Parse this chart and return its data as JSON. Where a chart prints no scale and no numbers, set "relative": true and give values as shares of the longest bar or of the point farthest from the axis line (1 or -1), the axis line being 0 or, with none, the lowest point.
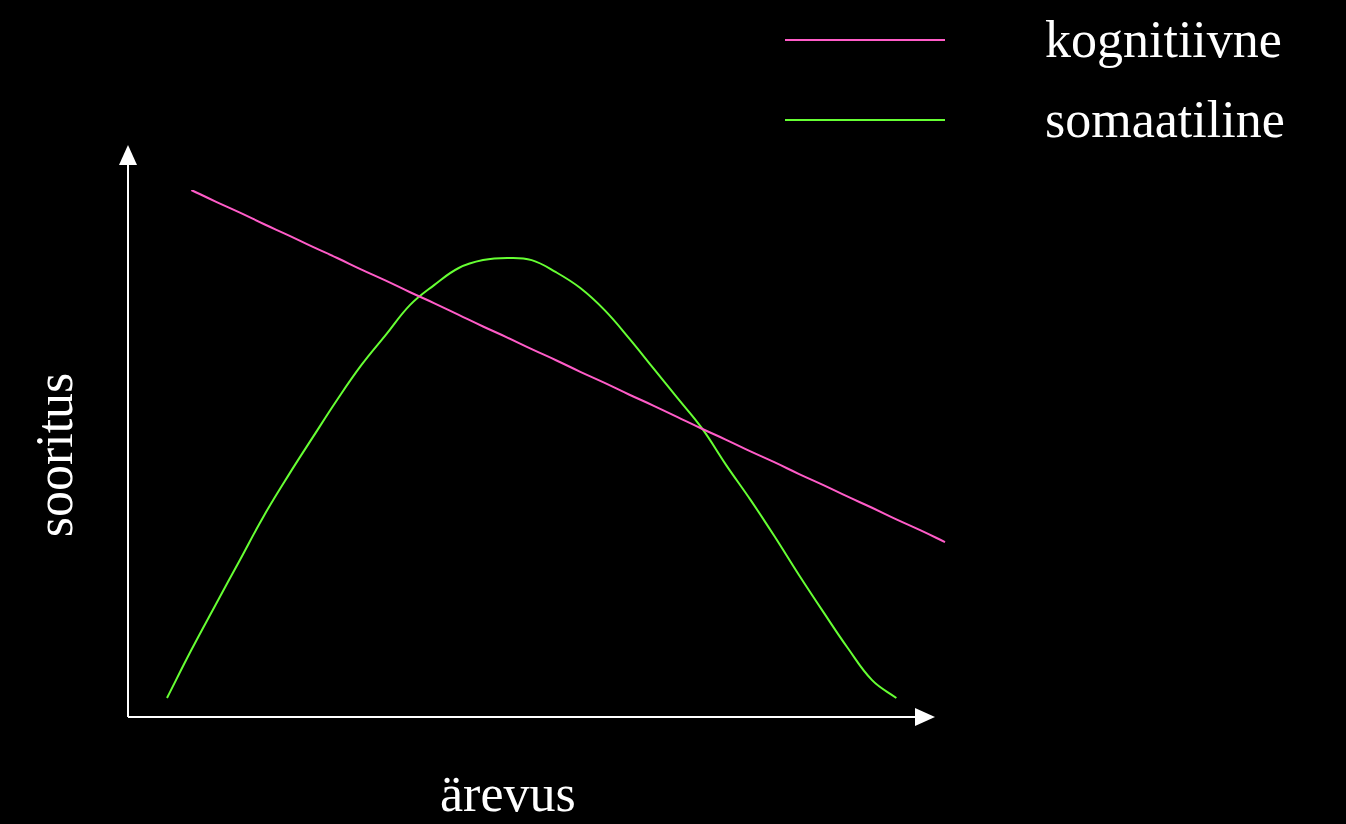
{
  "chart_data": {
    "type": "line",
    "relative": true,
    "xlabel": "ärevus",
    "ylabel": "sooritus",
    "legend": "top right",
    "marker": "none",
    "categories": [
      null,
      null,
      null,
      null,
      null,
      null,
      null,
      null,
      null,
      null,
      null,
      null,
      null,
      null,
      null,
      null,
      null,
      null,
      null,
      null,
      null,
      null,
      null,
      null,
      null,
      null,
      null,
      null,
      null,
      null,
      null,
      null,
      null
    ],
    "series": [
      {
        "name": "kognitiivne",
        "color": "#ff5cc8",
        "values": [
          null,
          1.0,
          0.978,
          0.957,
          0.935,
          0.914,
          0.892,
          0.871,
          0.849,
          0.828,
          0.806,
          0.785,
          0.763,
          0.741,
          0.72,
          0.698,
          0.677,
          0.655,
          0.634,
          0.612,
          0.591,
          0.569,
          0.547,
          0.526,
          0.504,
          0.483,
          0.461,
          0.44,
          0.418,
          0.397,
          0.375,
          0.354,
          0.332
        ]
      },
      {
        "name": "somaatiline",
        "color": "#66ff33",
        "values": [
          0.036,
          0.127,
          0.213,
          0.298,
          0.383,
          0.459,
          0.531,
          0.602,
          0.668,
          0.725,
          0.782,
          0.82,
          0.852,
          0.867,
          0.871,
          0.867,
          0.844,
          0.814,
          0.772,
          0.719,
          0.662,
          0.605,
          0.548,
          0.478,
          0.412,
          0.342,
          0.269,
          0.199,
          0.131,
          0.07,
          0.036,
          null,
          null
        ]
      }
    ]
  }
}
